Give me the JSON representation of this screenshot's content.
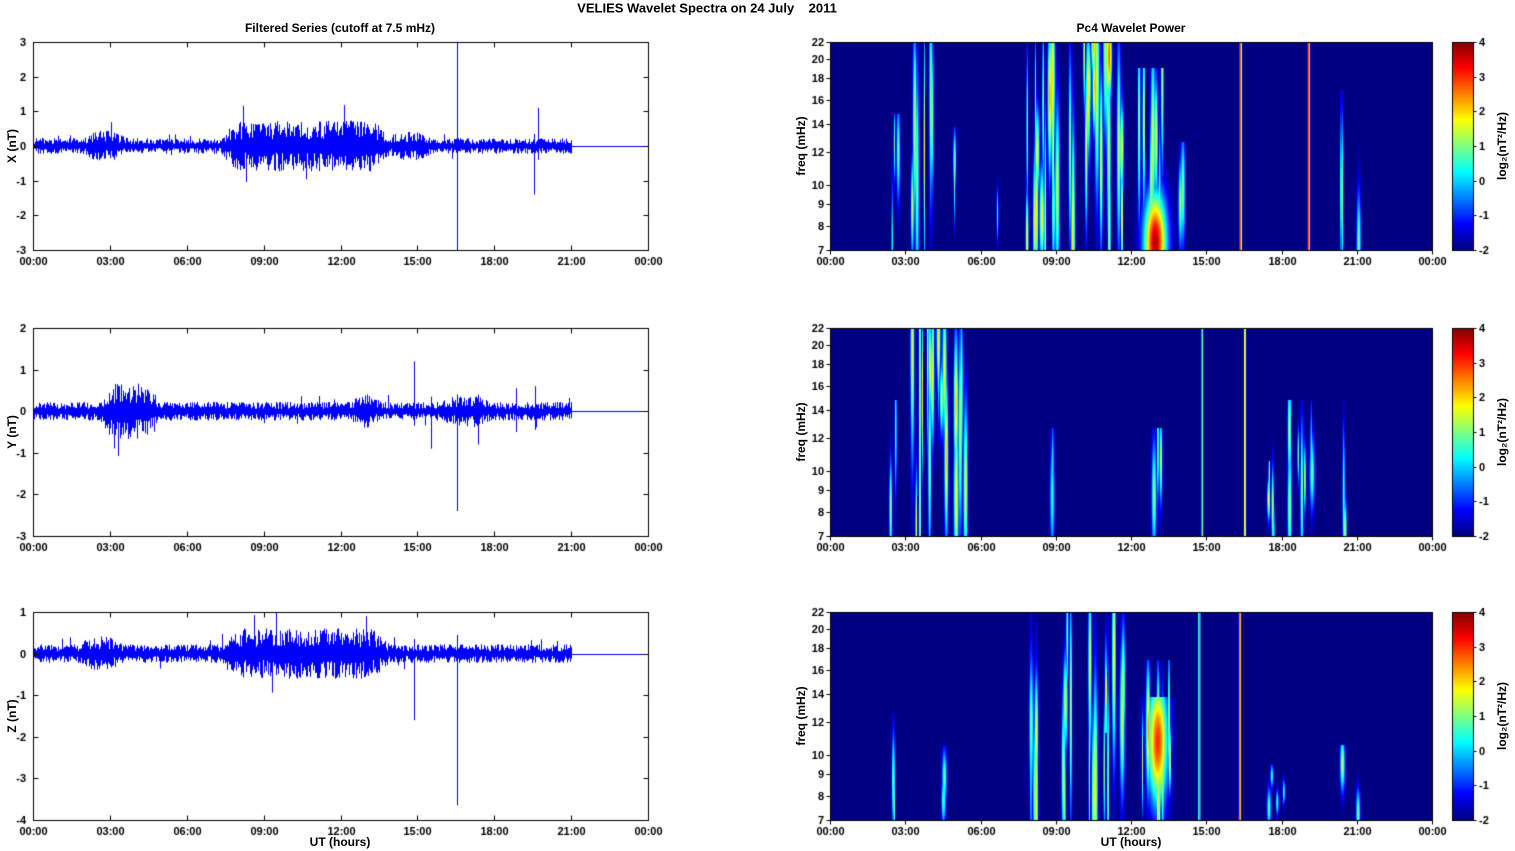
{
  "figure": {
    "title": "VELIES Wavelet Spectra on 24 July    2011"
  },
  "chart_data": [
    {
      "type": "line",
      "panel": "timeseries",
      "row": 0,
      "title": "Filtered Series (cutoff at 7.5 mHz)",
      "ylabel": "X (nT)",
      "ylim": [
        -3,
        3
      ],
      "yticks": [
        3,
        2,
        1,
        0,
        -1,
        -2,
        -3
      ],
      "xlim": [
        0,
        24
      ],
      "xticks": [
        0,
        3,
        6,
        9,
        12,
        15,
        18,
        21,
        24
      ],
      "xticklabels": [
        "00:00",
        "03:00",
        "06:00",
        "09:00",
        "12:00",
        "15:00",
        "18:00",
        "21:00",
        "00:00"
      ],
      "line_color": "#0000ff",
      "signal_end_hour": 21,
      "noise_base": 0.07,
      "bursts": [
        {
          "t0": 7.6,
          "t1": 13.6,
          "std": 0.16
        },
        {
          "t0": 2.2,
          "t1": 3.4,
          "std": 0.07
        },
        {
          "t0": 14.0,
          "t1": 15.3,
          "std": 0.06
        }
      ],
      "spikes": [
        {
          "t": 16.55,
          "lo": -3.0,
          "hi": 3.0
        },
        {
          "t": 19.55,
          "lo": -1.4,
          "hi": 0.35
        },
        {
          "t": 19.7,
          "lo": -0.4,
          "hi": 1.1
        }
      ]
    },
    {
      "type": "heatmap",
      "panel": "spectrogram",
      "row": 0,
      "title": "Pc4 Wavelet Power",
      "ylabel": "freq (mHz)",
      "colorbar_label": "log₂(nT²/Hz)",
      "ylim": [
        7,
        22
      ],
      "yscale": "log",
      "yticks": [
        22,
        20,
        18,
        16,
        14,
        12,
        10,
        9,
        8,
        7
      ],
      "xlim": [
        0,
        24
      ],
      "xticks": [
        0,
        3,
        6,
        9,
        12,
        15,
        18,
        21,
        24
      ],
      "xticklabels": [
        "00:00",
        "03:00",
        "06:00",
        "09:00",
        "12:00",
        "15:00",
        "18:00",
        "21:00",
        "00:00"
      ],
      "clim": [
        -2,
        4
      ],
      "colorbar_ticks": [
        4,
        3,
        2,
        1,
        0,
        -1,
        -2
      ],
      "background_value": -2,
      "events": [
        {
          "t0": 2.3,
          "t1": 2.7,
          "n": 3,
          "f0": 7,
          "f1": 14,
          "amp": 1.3
        },
        {
          "t0": 3.2,
          "t1": 4.2,
          "n": 7,
          "f0": 7,
          "f1": 22,
          "amp": 1.9
        },
        {
          "t0": 4.7,
          "t1": 5.0,
          "n": 2,
          "f0": 8,
          "f1": 13,
          "amp": 1.1
        },
        {
          "t0": 6.6,
          "t1": 6.7,
          "n": 1,
          "f0": 7,
          "f1": 10,
          "amp": 0.6
        },
        {
          "t0": 7.7,
          "t1": 8.35,
          "n": 6,
          "f0": 7,
          "f1": 22,
          "amp": 2.3
        },
        {
          "t0": 8.4,
          "t1": 9.7,
          "n": 11,
          "f0": 7,
          "f1": 22,
          "amp": 2.4
        },
        {
          "t0": 9.9,
          "t1": 11.7,
          "n": 13,
          "f0": 7,
          "f1": 22,
          "amp": 2.4
        },
        {
          "t0": 10.3,
          "t1": 11.3,
          "n": 4,
          "f0": 13,
          "f1": 22,
          "amp": 2.8
        },
        {
          "t0": 12.2,
          "t1": 13.7,
          "n": 8,
          "f0": 7,
          "f1": 18,
          "amp": 2.2
        },
        {
          "t0": 12.55,
          "t1": 13.35,
          "n": 1,
          "wide": true,
          "f0": 7,
          "f1": 12,
          "amp": 3.7
        },
        {
          "t0": 13.9,
          "t1": 14.15,
          "n": 2,
          "f0": 7,
          "f1": 12,
          "amp": 1.2
        },
        {
          "t0": 16.33,
          "t1": 16.4,
          "n": 1,
          "full": true,
          "f0": 7,
          "f1": 22,
          "amp": 3.1
        },
        {
          "t0": 19.05,
          "t1": 19.12,
          "n": 1,
          "full": true,
          "f0": 7,
          "f1": 22,
          "amp": 3.6
        },
        {
          "t0": 20.35,
          "t1": 20.6,
          "n": 2,
          "f0": 7,
          "f1": 16,
          "amp": 1.4
        },
        {
          "t0": 21.0,
          "t1": 21.15,
          "n": 1,
          "f0": 7,
          "f1": 12,
          "amp": 1.0
        }
      ]
    },
    {
      "type": "line",
      "panel": "timeseries",
      "row": 1,
      "ylabel": "Y (nT)",
      "ylim": [
        -3,
        2
      ],
      "yticks": [
        2,
        1,
        0,
        -1,
        -2,
        -3
      ],
      "xlim": [
        0,
        24
      ],
      "xticks": [
        0,
        3,
        6,
        9,
        12,
        15,
        18,
        21,
        24
      ],
      "xticklabels": [
        "00:00",
        "03:00",
        "06:00",
        "09:00",
        "12:00",
        "15:00",
        "18:00",
        "21:00",
        "00:00"
      ],
      "line_color": "#0000ff",
      "signal_end_hour": 21,
      "noise_base": 0.07,
      "bursts": [
        {
          "t0": 2.8,
          "t1": 4.7,
          "std": 0.14
        },
        {
          "t0": 12.6,
          "t1": 13.3,
          "std": 0.06
        },
        {
          "t0": 16.2,
          "t1": 17.6,
          "std": 0.05
        }
      ],
      "spikes": [
        {
          "t": 14.85,
          "lo": -0.35,
          "hi": 1.2
        },
        {
          "t": 15.55,
          "lo": -0.9,
          "hi": 0.35
        },
        {
          "t": 16.55,
          "lo": -2.4,
          "hi": 0.4
        },
        {
          "t": 17.35,
          "lo": -0.8,
          "hi": 0.4
        },
        {
          "t": 18.85,
          "lo": -0.5,
          "hi": 0.55
        },
        {
          "t": 19.6,
          "lo": -0.45,
          "hi": 0.6
        }
      ]
    },
    {
      "type": "heatmap",
      "panel": "spectrogram",
      "row": 1,
      "ylabel": "freq (mHz)",
      "colorbar_label": "log₂(nT²/Hz)",
      "ylim": [
        7,
        22
      ],
      "yscale": "log",
      "yticks": [
        22,
        20,
        18,
        16,
        14,
        12,
        10,
        9,
        8,
        7
      ],
      "xlim": [
        0,
        24
      ],
      "xticks": [
        0,
        3,
        6,
        9,
        12,
        15,
        18,
        21,
        24
      ],
      "xticklabels": [
        "00:00",
        "03:00",
        "06:00",
        "09:00",
        "12:00",
        "15:00",
        "18:00",
        "21:00",
        "00:00"
      ],
      "clim": [
        -2,
        4
      ],
      "colorbar_ticks": [
        4,
        3,
        2,
        1,
        0,
        -1,
        -2
      ],
      "background_value": -2,
      "events": [
        {
          "t0": 2.35,
          "t1": 2.6,
          "n": 2,
          "f0": 7,
          "f1": 14,
          "amp": 1.4
        },
        {
          "t0": 3.2,
          "t1": 5.5,
          "n": 14,
          "f0": 7,
          "f1": 22,
          "amp": 2.2
        },
        {
          "t0": 3.9,
          "t1": 5.1,
          "n": 5,
          "f0": 11,
          "f1": 22,
          "amp": 2.7
        },
        {
          "t0": 3.5,
          "t1": 3.6,
          "n": 1,
          "full": true,
          "f0": 7,
          "f1": 22,
          "amp": 1.8
        },
        {
          "t0": 8.8,
          "t1": 9.05,
          "n": 2,
          "f0": 7,
          "f1": 12,
          "amp": 0.9
        },
        {
          "t0": 12.9,
          "t1": 13.25,
          "n": 3,
          "f0": 7,
          "f1": 12,
          "amp": 1.7
        },
        {
          "t0": 14.8,
          "t1": 14.86,
          "n": 1,
          "full": true,
          "f0": 7,
          "f1": 22,
          "amp": 1.0
        },
        {
          "t0": 16.5,
          "t1": 16.56,
          "n": 1,
          "full": true,
          "f0": 7,
          "f1": 22,
          "amp": 2.5
        },
        {
          "t0": 16.9,
          "t1": 19.3,
          "n": 9,
          "f0": 7,
          "f1": 14,
          "amp": 1.6
        },
        {
          "t0": 17.35,
          "t1": 17.65,
          "n": 2,
          "f0": 7,
          "f1": 10,
          "amp": 2.1
        },
        {
          "t0": 20.35,
          "t1": 20.6,
          "n": 2,
          "f0": 7,
          "f1": 14,
          "amp": 1.7
        }
      ]
    },
    {
      "type": "line",
      "panel": "timeseries",
      "row": 2,
      "ylabel": "Z (nT)",
      "xlabel": "UT (hours)",
      "ylim": [
        -4,
        1
      ],
      "yticks": [
        1,
        0,
        -1,
        -2,
        -3,
        -4
      ],
      "xlim": [
        0,
        24
      ],
      "xticks": [
        0,
        3,
        6,
        9,
        12,
        15,
        18,
        21,
        24
      ],
      "xticklabels": [
        "00:00",
        "03:00",
        "06:00",
        "09:00",
        "12:00",
        "15:00",
        "18:00",
        "21:00",
        "00:00"
      ],
      "line_color": "#0000ff",
      "signal_end_hour": 21,
      "noise_base": 0.07,
      "bursts": [
        {
          "t0": 7.6,
          "t1": 13.6,
          "std": 0.12
        },
        {
          "t0": 2.0,
          "t1": 3.2,
          "std": 0.06
        }
      ],
      "spikes": [
        {
          "t": 12.6,
          "lo": -0.6,
          "hi": 0.6
        },
        {
          "t": 13.0,
          "lo": -0.5,
          "hi": 0.9
        },
        {
          "t": 14.85,
          "lo": -1.6,
          "hi": 0.35
        },
        {
          "t": 16.55,
          "lo": -3.65,
          "hi": 0.45
        }
      ]
    },
    {
      "type": "heatmap",
      "panel": "spectrogram",
      "row": 2,
      "ylabel": "freq (mHz)",
      "xlabel": "UT (hours)",
      "colorbar_label": "log₂(nT²/Hz)",
      "ylim": [
        7,
        22
      ],
      "yscale": "log",
      "yticks": [
        22,
        20,
        18,
        16,
        14,
        12,
        10,
        9,
        8,
        7
      ],
      "xlim": [
        0,
        24
      ],
      "xticks": [
        0,
        3,
        6,
        9,
        12,
        15,
        18,
        21,
        24
      ],
      "xticklabels": [
        "00:00",
        "03:00",
        "06:00",
        "09:00",
        "12:00",
        "15:00",
        "18:00",
        "21:00",
        "00:00"
      ],
      "clim": [
        -2,
        4
      ],
      "colorbar_ticks": [
        4,
        3,
        2,
        1,
        0,
        -1,
        -2
      ],
      "background_value": -2,
      "events": [
        {
          "t0": 2.3,
          "t1": 2.55,
          "n": 2,
          "f0": 7,
          "f1": 12,
          "amp": 1.3
        },
        {
          "t0": 4.35,
          "t1": 4.6,
          "n": 2,
          "f0": 7,
          "f1": 10,
          "amp": 1.0
        },
        {
          "t0": 7.9,
          "t1": 9.6,
          "n": 10,
          "f0": 7,
          "f1": 22,
          "amp": 1.8
        },
        {
          "t0": 10.2,
          "t1": 11.7,
          "n": 9,
          "f0": 7,
          "f1": 22,
          "amp": 2.0
        },
        {
          "t0": 10.95,
          "t1": 11.35,
          "n": 2,
          "f0": 12,
          "f1": 22,
          "amp": 2.3
        },
        {
          "t0": 12.3,
          "t1": 13.6,
          "n": 8,
          "f0": 7,
          "f1": 16,
          "amp": 2.5
        },
        {
          "t0": 12.7,
          "t1": 13.4,
          "n": 1,
          "wide": true,
          "f0": 7,
          "f1": 13,
          "amp": 3.0
        },
        {
          "t0": 14.68,
          "t1": 14.74,
          "n": 1,
          "full": true,
          "f0": 7,
          "f1": 22,
          "amp": 2.6
        },
        {
          "t0": 16.3,
          "t1": 16.36,
          "n": 1,
          "full": true,
          "f0": 7,
          "f1": 22,
          "amp": 3.5
        },
        {
          "t0": 17.0,
          "t1": 18.1,
          "n": 4,
          "f0": 7,
          "f1": 9,
          "amp": 1.2
        },
        {
          "t0": 20.35,
          "t1": 20.5,
          "n": 1,
          "f0": 7,
          "f1": 10,
          "amp": 1.4
        },
        {
          "t0": 21.0,
          "t1": 21.1,
          "n": 1,
          "f0": 7,
          "f1": 9,
          "amp": 1.0
        }
      ]
    }
  ]
}
